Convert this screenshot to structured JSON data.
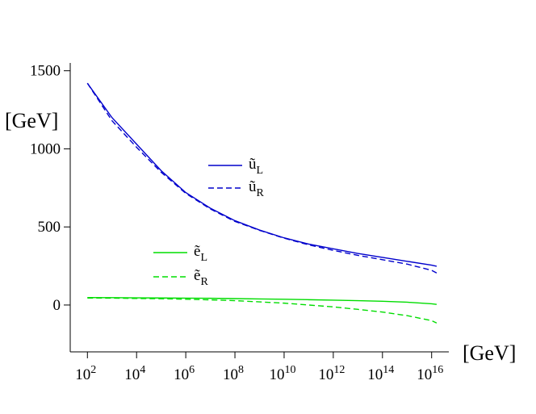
{
  "chart_data": {
    "type": "line",
    "y_label": "[GeV]",
    "x_label": "[GeV]",
    "x": [
      100,
      1000,
      10000,
      100000,
      1000000,
      10000000,
      100000000,
      1000000000,
      10000000000,
      100000000000,
      1000000000000,
      10000000000000,
      100000000000000,
      1000000000000000,
      10000000000000000,
      16000000000000000
    ],
    "series": [
      {
        "name": "ũ_L",
        "color": "#0000cc",
        "dash": false,
        "values": [
          1420,
          1200,
          1030,
          860,
          720,
          620,
          540,
          480,
          430,
          390,
          360,
          330,
          305,
          280,
          255,
          248
        ]
      },
      {
        "name": "ũ_R",
        "color": "#0000cc",
        "dash": true,
        "values": [
          1420,
          1180,
          1010,
          850,
          715,
          615,
          535,
          478,
          428,
          385,
          350,
          318,
          290,
          262,
          222,
          205
        ]
      },
      {
        "name": "ẽ_L",
        "color": "#00dd00",
        "dash": false,
        "values": [
          48,
          47,
          46,
          45,
          44,
          43,
          41,
          39,
          37,
          34,
          31,
          28,
          24,
          18,
          8,
          4
        ]
      },
      {
        "name": "ẽ_R",
        "color": "#00dd00",
        "dash": true,
        "values": [
          45,
          44,
          42,
          40,
          37,
          33,
          28,
          20,
          12,
          0,
          -12,
          -28,
          -45,
          -68,
          -100,
          -115
        ]
      }
    ],
    "xscale": "log",
    "xlim": [
      20,
      50000000000000000
    ],
    "xticks": [
      {
        "value": 100,
        "label": "10^2"
      },
      {
        "value": 10000,
        "label": "10^4"
      },
      {
        "value": 1000000,
        "label": "10^6"
      },
      {
        "value": 100000000,
        "label": "10^8"
      },
      {
        "value": 10000000000,
        "label": "10^10"
      },
      {
        "value": 1000000000000,
        "label": "10^12"
      },
      {
        "value": 100000000000000,
        "label": "10^14"
      },
      {
        "value": 10000000000000000,
        "label": "10^16"
      }
    ],
    "ylim": [
      -300,
      1550
    ],
    "yticks": [
      0,
      500,
      1000,
      1500
    ],
    "grid": false
  }
}
